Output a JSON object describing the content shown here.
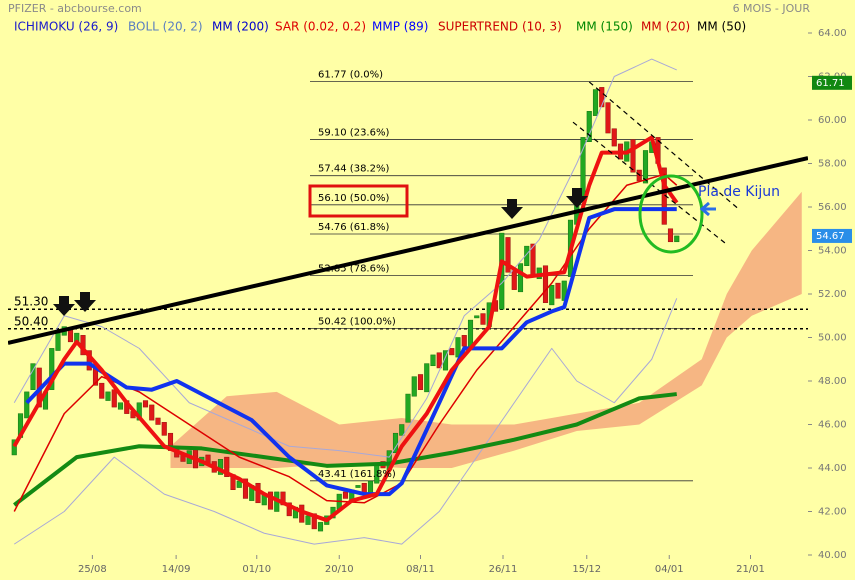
{
  "chart_data": {
    "type": "candlestick",
    "title": "PFIZER - abcbourse.com",
    "period": "6 MOIS - JOUR",
    "legend": [
      {
        "label": "ICHIMOKU (26, 9)",
        "color": "#1a1acc"
      },
      {
        "label": "BOLL (20, 2)",
        "color": "#5a7fc0"
      },
      {
        "label": "MM (200)",
        "color": "#0000cc"
      },
      {
        "label": "SAR (0.02, 0.2)",
        "color": "#dd0000"
      },
      {
        "label": "MMP (89)",
        "color": "#0000ff"
      },
      {
        "label": "SUPERTREND (10, 3)",
        "color": "#cc0000"
      },
      {
        "label": "MM (150)",
        "color": "#008800"
      },
      {
        "label": "MM (20)",
        "color": "#cc0000"
      },
      {
        "label": "MM (50)",
        "color": "#000000"
      }
    ],
    "xlim": [
      -1,
      127
    ],
    "xticks": [
      {
        "value": 12.5,
        "label": "25/08"
      },
      {
        "value": 25.9,
        "label": "14/09"
      },
      {
        "value": 38.8,
        "label": "01/10"
      },
      {
        "value": 52,
        "label": "20/10"
      },
      {
        "value": 65,
        "label": "08/11"
      },
      {
        "value": 78.2,
        "label": "26/11"
      },
      {
        "value": 91.6,
        "label": "15/12"
      },
      {
        "value": 104.8,
        "label": "04/01"
      },
      {
        "value": 117.8,
        "label": "21/01"
      }
    ],
    "ylim": [
      40,
      64
    ],
    "yticks": [
      {
        "value": 40,
        "label": "40.00"
      },
      {
        "value": 42,
        "label": "42.00"
      },
      {
        "value": 44,
        "label": "44.00"
      },
      {
        "value": 46,
        "label": "46.00"
      },
      {
        "value": 48,
        "label": "48.00"
      },
      {
        "value": 50,
        "label": "50.00"
      },
      {
        "value": 52,
        "label": "52.00"
      },
      {
        "value": 54,
        "label": "54.00"
      },
      {
        "value": 56,
        "label": "56.00"
      },
      {
        "value": 58,
        "label": "58.00"
      },
      {
        "value": 60,
        "label": "60.00"
      },
      {
        "value": 62,
        "label": "62.00"
      },
      {
        "value": 64,
        "label": "64.00"
      }
    ],
    "up_color": "#22a822",
    "down_color": "#e01818",
    "open": [
      44.6,
      45.4,
      46.3,
      47.6,
      48.6,
      46.7,
      47.6,
      49.4,
      50.1,
      50.4,
      49.7,
      50.1,
      49.4,
      48.6,
      47.9,
      47.1,
      47.6,
      46.7,
      47.1,
      46.6,
      46.2,
      47.1,
      46.9,
      46.3,
      46.1,
      45.6,
      44.9,
      44.6,
      44.2,
      44.9,
      44.1,
      44.6,
      44.3,
      43.7,
      44.5,
      43.7,
      43.1,
      43.5,
      42.5,
      43.3,
      42.3,
      42.9,
      42.0,
      42.9,
      42.4,
      41.7,
      42.3,
      41.4,
      41.9,
      41.1,
      41.4,
      41.7,
      42.1,
      42.9,
      42.5,
      43.1,
      43.3,
      42.7,
      43.3,
      44.3,
      43.9,
      44.7,
      45.5,
      46.1,
      47.3,
      48.3,
      47.5,
      48.7,
      49.3,
      48.5,
      49.5,
      49.1,
      50.1,
      49.5,
      50.9,
      51.1,
      50.5,
      51.7,
      51.3,
      54.6,
      53.1,
      52.1,
      53.3,
      54.3,
      52.7,
      53.3,
      51.5,
      52.5,
      51.7,
      52.8,
      55.2,
      56.3,
      59.0,
      60.2,
      61.5,
      60.8,
      59.6,
      58.9,
      58.1,
      59.1,
      57.7,
      57.1,
      58.5,
      59.2,
      57.8,
      55.0,
      54.4
    ],
    "close": [
      45.3,
      46.5,
      47.5,
      48.8,
      46.8,
      47.5,
      49.5,
      50.2,
      50.5,
      49.8,
      50.2,
      49.2,
      48.5,
      47.8,
      47.2,
      47.5,
      46.8,
      47.0,
      46.5,
      46.3,
      47.0,
      46.8,
      46.2,
      46.0,
      45.5,
      44.8,
      44.5,
      44.3,
      44.8,
      44.0,
      44.5,
      44.2,
      43.8,
      44.4,
      43.6,
      43.0,
      43.4,
      42.6,
      43.2,
      42.4,
      42.8,
      42.1,
      42.9,
      42.3,
      41.8,
      42.2,
      41.5,
      41.8,
      41.2,
      41.5,
      41.8,
      42.2,
      42.8,
      42.6,
      43.0,
      43.2,
      42.8,
      43.4,
      44.2,
      44.0,
      44.8,
      45.6,
      46.0,
      47.4,
      48.2,
      47.6,
      48.8,
      49.2,
      48.6,
      49.4,
      49.2,
      50.0,
      49.6,
      50.8,
      51.0,
      50.6,
      51.6,
      51.2,
      54.8,
      53.0,
      52.2,
      53.4,
      54.2,
      52.8,
      53.2,
      51.6,
      52.4,
      51.8,
      52.6,
      55.4,
      56.4,
      59.2,
      60.4,
      61.4,
      60.6,
      59.4,
      58.8,
      58.2,
      59.0,
      57.6,
      57.2,
      58.6,
      59.0,
      58.0,
      55.2,
      54.4,
      54.67
    ],
    "cloud": {
      "color": "#f5a97c",
      "x": [
        25,
        34,
        42,
        52,
        62,
        70,
        80,
        90,
        100,
        110,
        114,
        118,
        126
      ],
      "upper": [
        45,
        47.3,
        47.5,
        46,
        46.3,
        46,
        46,
        46.5,
        47,
        49,
        52,
        54,
        56.7
      ],
      "lower": [
        44,
        44,
        44,
        44.2,
        44,
        44,
        44.8,
        45.7,
        46,
        47.8,
        50,
        51,
        52
      ]
    },
    "overlays": [
      {
        "color": "#a8a8d8",
        "width": 1,
        "x": [
          0,
          8,
          14,
          20,
          28,
          36,
          44,
          52,
          60,
          66,
          72,
          78,
          84,
          90,
          96,
          102,
          106
        ],
        "values": [
          47,
          51,
          50.5,
          49.5,
          47,
          46,
          45,
          44.8,
          44.5,
          47.2,
          51,
          52.5,
          54.5,
          58,
          62,
          62.8,
          62.3
        ]
      },
      {
        "color": "#a8a8d8",
        "width": 1,
        "x": [
          0,
          8,
          16,
          24,
          32,
          40,
          48,
          56,
          62,
          68,
          74,
          80,
          86,
          90,
          96,
          102,
          106
        ],
        "values": [
          40.5,
          42,
          44.5,
          42.8,
          42,
          41,
          40.5,
          40.8,
          40.5,
          42,
          44.5,
          47,
          49.5,
          48,
          47,
          49,
          51.8
        ]
      },
      {
        "color": "#138a13",
        "width": 4,
        "x": [
          0,
          10,
          20,
          30,
          40,
          50,
          60,
          70,
          80,
          90,
          100,
          106
        ],
        "values": [
          42.3,
          44.5,
          45,
          44.9,
          44.5,
          44.1,
          44.2,
          44.7,
          45.3,
          46,
          47.2,
          47.4
        ]
      },
      {
        "color": "#dd0000",
        "width": 1.5,
        "x": [
          0,
          8,
          14,
          20,
          28,
          36,
          44,
          50,
          56,
          62,
          68,
          74,
          80,
          86,
          92,
          98,
          104,
          106
        ],
        "values": [
          42,
          46.5,
          48.2,
          47.5,
          46,
          44.5,
          43.6,
          42.5,
          42.4,
          43.3,
          46,
          48.5,
          50.5,
          52.5,
          55,
          57,
          57.5,
          57
        ]
      },
      {
        "color": "#1133ee",
        "width": 4,
        "x": [
          2,
          8,
          12,
          18,
          22,
          26,
          34,
          38,
          44,
          50,
          56,
          60,
          62,
          68,
          72,
          78,
          82,
          86,
          88,
          92,
          96,
          106
        ],
        "values": [
          47,
          48.8,
          48.8,
          47.7,
          47.6,
          48,
          46.8,
          46.2,
          44.5,
          43.2,
          42.8,
          42.8,
          43.3,
          47,
          49.5,
          49.5,
          50.7,
          51.2,
          51.4,
          55.5,
          55.9,
          55.9
        ]
      },
      {
        "color": "#ee1111",
        "width": 4,
        "x": [
          0,
          4,
          8,
          10,
          14,
          18,
          24,
          30,
          36,
          40,
          46,
          50,
          54,
          58,
          62,
          66,
          70,
          76,
          78,
          82,
          88,
          92,
          94,
          98,
          102,
          104,
          106
        ],
        "values": [
          45,
          47,
          49,
          49.8,
          48.5,
          47,
          45,
          44.3,
          43.5,
          42.8,
          42,
          41.6,
          42.5,
          42.8,
          45,
          46.5,
          48.5,
          50.5,
          53.5,
          52.8,
          53,
          57,
          58.5,
          58.5,
          59.2,
          57,
          56.2
        ]
      }
    ],
    "trendlines": [
      {
        "color": "#000000",
        "width": 4,
        "dash": "",
        "x": [
          -1,
          127
        ],
        "values": [
          49.75,
          58.25
        ]
      },
      {
        "color": "#000000",
        "width": 1.2,
        "dash": "5,4",
        "x": [
          92,
          116.1
        ],
        "values": [
          61.75,
          55.86
        ]
      },
      {
        "color": "#000000",
        "width": 1.2,
        "dash": "5,4",
        "x": [
          89.4,
          113.7
        ],
        "values": [
          59.9,
          54.35
        ]
      }
    ],
    "fib_levels": [
      {
        "value": 61.77,
        "label": "61.77  (0.0%)"
      },
      {
        "value": 59.1,
        "label": "59.10  (23.6%)"
      },
      {
        "value": 57.44,
        "label": "57.44  (38.2%)"
      },
      {
        "value": 56.1,
        "label": "56.10  (50.0%)"
      },
      {
        "value": 54.76,
        "label": "54.76  (61.8%)"
      },
      {
        "value": 52.85,
        "label": "52.85  (78.6%)"
      },
      {
        "value": 50.42,
        "label": "50.42  (100.0%)"
      },
      {
        "value": 43.41,
        "label": "43.41  (161.8%)"
      }
    ],
    "levels": [
      {
        "value": 51.3,
        "label": "51.30"
      },
      {
        "value": 50.4,
        "label": "50.40"
      }
    ],
    "price_tags": [
      {
        "value": 61.71,
        "label": "61.71",
        "color": "#118811"
      },
      {
        "value": 54.67,
        "label": "54.67",
        "color": "#2a8ee8"
      }
    ],
    "annotation": "Pla de Kijun"
  }
}
